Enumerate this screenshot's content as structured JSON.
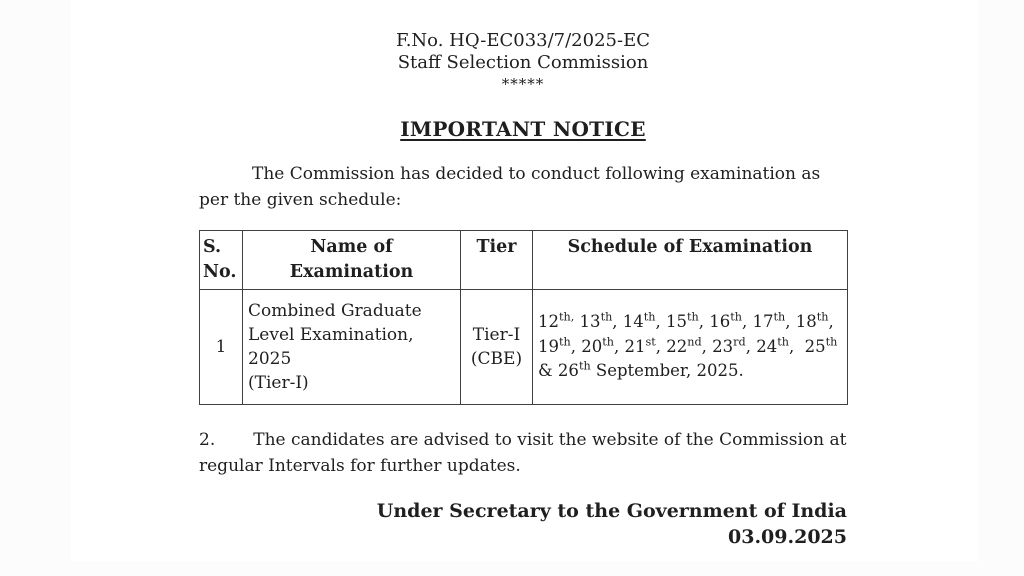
{
  "document": {
    "file_number": "F.No. HQ-EC033/7/2025-EC",
    "organization": "Staff Selection Commission",
    "separator": "*****",
    "notice_title": "IMPORTANT NOTICE",
    "intro_paragraph": "The Commission has decided to conduct following examination as per the given schedule:",
    "point2_number": "2.",
    "point2_text": "The candidates are advised to visit the website of the Commission at regular Intervals for further updates.",
    "signature": "Under Secretary to the Government of India",
    "date": "03.09.2025"
  },
  "table": {
    "headers": {
      "sno": "S. No.",
      "name": "Name of Examination",
      "tier": "Tier",
      "schedule": "Schedule of Examination"
    },
    "row": {
      "sno": "1",
      "name": "Combined Graduate\nLevel Examination, 2025\n(Tier-I)",
      "tier": "Tier-I\n(CBE)",
      "schedule_tokens": [
        {
          "t": "12"
        },
        {
          "s": "th,"
        },
        {
          "t": " 13"
        },
        {
          "s": "th"
        },
        {
          "t": ", 14"
        },
        {
          "s": "th"
        },
        {
          "t": ", 15"
        },
        {
          "s": "th"
        },
        {
          "t": ", 16"
        },
        {
          "s": "th"
        },
        {
          "t": ", 17"
        },
        {
          "s": "th"
        },
        {
          "t": ", 18"
        },
        {
          "s": "th"
        },
        {
          "t": ",\n19"
        },
        {
          "s": "th"
        },
        {
          "t": ", 20"
        },
        {
          "s": "th"
        },
        {
          "t": ", 21"
        },
        {
          "s": "st"
        },
        {
          "t": ", 22"
        },
        {
          "s": "nd"
        },
        {
          "t": ", 23"
        },
        {
          "s": "rd"
        },
        {
          "t": ", 24"
        },
        {
          "s": "th"
        },
        {
          "t": ",  25"
        },
        {
          "s": "th"
        },
        {
          "t": "\n& 26"
        },
        {
          "s": "th"
        },
        {
          "t": " September, 2025."
        }
      ]
    }
  }
}
